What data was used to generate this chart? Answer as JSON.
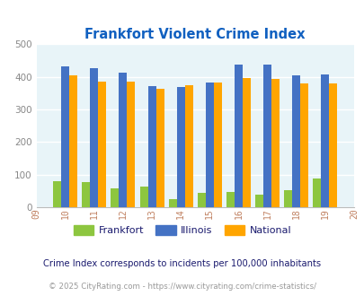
{
  "title": "Frankfort Violent Crime Index",
  "years": [
    2010,
    2011,
    2012,
    2013,
    2014,
    2015,
    2016,
    2017,
    2018,
    2019
  ],
  "frankfort": [
    80,
    76,
    57,
    64,
    26,
    43,
    47,
    39,
    53,
    87
  ],
  "illinois": [
    433,
    427,
    414,
    372,
    369,
    383,
    438,
    437,
    405,
    409
  ],
  "national": [
    405,
    387,
    387,
    365,
    374,
    383,
    397,
    394,
    379,
    379
  ],
  "color_frankfort": "#8DC63F",
  "color_illinois": "#4472C4",
  "color_national": "#FFA500",
  "xlim": [
    2009,
    2020
  ],
  "ylim": [
    0,
    500
  ],
  "yticks": [
    0,
    100,
    200,
    300,
    400,
    500
  ],
  "bg_color": "#E8F4F8",
  "grid_color": "#FFFFFF",
  "subtitle": "Crime Index corresponds to incidents per 100,000 inhabitants",
  "footer": "© 2025 CityRating.com - https://www.cityrating.com/crime-statistics/",
  "title_color": "#1060C0",
  "subtitle_color": "#1a1a6e",
  "footer_color": "#999999",
  "xtick_color": "#C08060",
  "ytick_color": "#888888"
}
